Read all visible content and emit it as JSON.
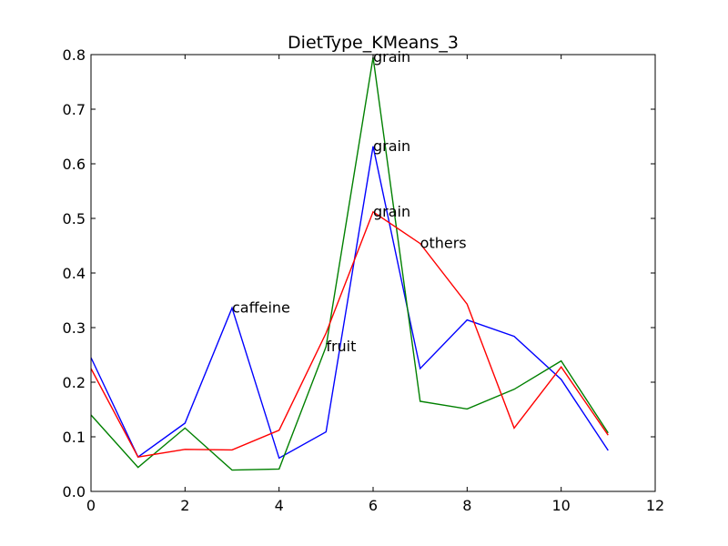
{
  "chart_data": {
    "type": "line",
    "title": "DietType_KMeans_3",
    "xlabel": "",
    "ylabel": "",
    "xlim": [
      0,
      12
    ],
    "ylim": [
      0,
      0.8
    ],
    "grid": false,
    "x_ticks": [
      "0",
      "2",
      "4",
      "6",
      "8",
      "10",
      "12"
    ],
    "y_ticks": [
      "0.0",
      "0.1",
      "0.2",
      "0.3",
      "0.4",
      "0.5",
      "0.6",
      "0.7",
      "0.8"
    ],
    "x": [
      0,
      1,
      2,
      3,
      4,
      5,
      6,
      7,
      8,
      9,
      10,
      11
    ],
    "series": [
      {
        "color": "#0000ff",
        "values": [
          0.245,
          0.063,
          0.125,
          0.336,
          0.061,
          0.109,
          0.632,
          0.225,
          0.314,
          0.284,
          0.205,
          0.075
        ]
      },
      {
        "color": "#008000",
        "values": [
          0.14,
          0.044,
          0.116,
          0.039,
          0.041,
          0.265,
          0.795,
          0.165,
          0.151,
          0.187,
          0.239,
          0.107
        ]
      },
      {
        "color": "#ff0000",
        "values": [
          0.225,
          0.063,
          0.077,
          0.076,
          0.112,
          0.29,
          0.512,
          0.454,
          0.343,
          0.116,
          0.228,
          0.103
        ]
      }
    ],
    "annotations": [
      {
        "text": "grain",
        "x": 6,
        "y": 0.795
      },
      {
        "text": "grain",
        "x": 6,
        "y": 0.632
      },
      {
        "text": "grain",
        "x": 6,
        "y": 0.512
      },
      {
        "text": "others",
        "x": 7,
        "y": 0.454
      },
      {
        "text": "caffeine",
        "x": 3,
        "y": 0.336
      },
      {
        "text": "fruit",
        "x": 5,
        "y": 0.265
      }
    ]
  }
}
